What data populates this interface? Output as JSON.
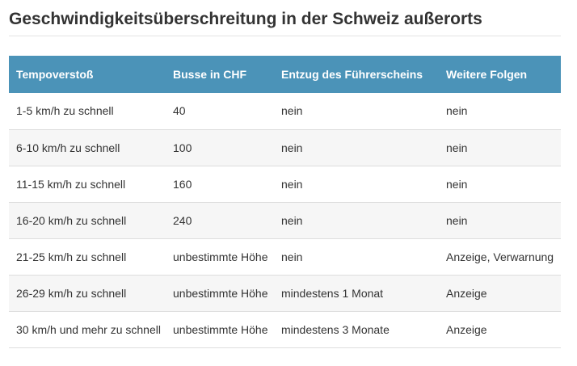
{
  "title": "Geschwindigkeitsüberschreitung in der Schweiz außerorts",
  "table": {
    "headers": [
      "Tempoverstoß",
      "Busse in CHF",
      "Entzug des Führerscheins",
      "Weitere Folgen"
    ],
    "rows": [
      [
        "1-5 km/h zu schnell",
        "40",
        "nein",
        "nein"
      ],
      [
        "6-10 km/h zu schnell",
        "100",
        "nein",
        "nein"
      ],
      [
        "11-15 km/h zu schnell",
        "160",
        "nein",
        "nein"
      ],
      [
        "16-20 km/h zu schnell",
        "240",
        "nein",
        "nein"
      ],
      [
        "21-25 km/h zu schnell",
        "unbestimmte Höhe",
        "nein",
        "Anzeige, Verwarnung"
      ],
      [
        "26-29 km/h zu schnell",
        "unbestimmte Höhe",
        "mindestens 1 Monat",
        "Anzeige"
      ],
      [
        "30 km/h und mehr zu schnell",
        "unbestimmte Höhe",
        "mindestens 3 Monate",
        "Anzeige"
      ]
    ]
  },
  "colors": {
    "header_background": "#4b93b8",
    "header_text": "#ffffff",
    "row_stripe": "#f6f6f6",
    "text": "#333333"
  }
}
